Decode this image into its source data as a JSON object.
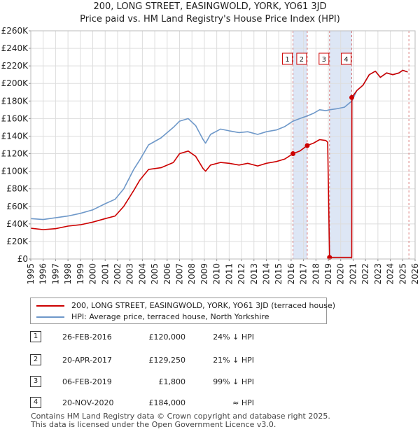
{
  "chart_data": {
    "type": "line",
    "title": "200, LONG STREET, EASINGWOLD, YORK, YO61 3JD",
    "subtitle": "Price paid vs. HM Land Registry's House Price Index (HPI)",
    "xlabel": "",
    "ylabel": "",
    "xlim": [
      1995,
      2026
    ],
    "ylim": [
      0,
      260000
    ],
    "x_ticks": [
      1995,
      1996,
      1997,
      1998,
      1999,
      2000,
      2001,
      2002,
      2003,
      2004,
      2005,
      2006,
      2007,
      2008,
      2009,
      2010,
      2011,
      2012,
      2013,
      2014,
      2015,
      2016,
      2017,
      2018,
      2019,
      2020,
      2021,
      2022,
      2023,
      2024,
      2025,
      2026
    ],
    "y_ticks": [
      {
        "value": 0,
        "label": "£0"
      },
      {
        "value": 20000,
        "label": "£20K"
      },
      {
        "value": 40000,
        "label": "£40K"
      },
      {
        "value": 60000,
        "label": "£60K"
      },
      {
        "value": 80000,
        "label": "£80K"
      },
      {
        "value": 100000,
        "label": "£100K"
      },
      {
        "value": 120000,
        "label": "£120K"
      },
      {
        "value": 140000,
        "label": "£140K"
      },
      {
        "value": 160000,
        "label": "£160K"
      },
      {
        "value": 180000,
        "label": "£180K"
      },
      {
        "value": 200000,
        "label": "£200K"
      },
      {
        "value": 220000,
        "label": "£220K"
      },
      {
        "value": 240000,
        "label": "£240K"
      },
      {
        "value": 260000,
        "label": "£260K"
      }
    ],
    "grid": true,
    "series": [
      {
        "name": "200, LONG STREET, EASINGWOLD, YORK, YO61 3JD (terraced house)",
        "color": "#cc0000",
        "points": [
          [
            1995.0,
            35000
          ],
          [
            1996.0,
            33500
          ],
          [
            1997.0,
            34500
          ],
          [
            1998.0,
            37500
          ],
          [
            1999.0,
            39000
          ],
          [
            2000.0,
            42000
          ],
          [
            2001.0,
            46000
          ],
          [
            2001.8,
            49000
          ],
          [
            2002.5,
            60000
          ],
          [
            2003.3,
            78000
          ],
          [
            2003.8,
            90000
          ],
          [
            2004.5,
            102000
          ],
          [
            2005.5,
            104000
          ],
          [
            2006.5,
            110000
          ],
          [
            2007.0,
            120000
          ],
          [
            2007.7,
            123000
          ],
          [
            2008.3,
            117000
          ],
          [
            2008.9,
            103000
          ],
          [
            2009.1,
            100000
          ],
          [
            2009.5,
            107000
          ],
          [
            2010.3,
            110000
          ],
          [
            2011.0,
            109000
          ],
          [
            2011.8,
            107000
          ],
          [
            2012.5,
            109000
          ],
          [
            2013.3,
            106000
          ],
          [
            2014.0,
            109000
          ],
          [
            2014.8,
            111000
          ],
          [
            2015.5,
            114000
          ],
          [
            2016.15,
            120000
          ],
          [
            2016.7,
            123000
          ],
          [
            2017.3,
            129250
          ],
          [
            2017.8,
            132000
          ],
          [
            2018.3,
            136000
          ],
          [
            2018.8,
            135000
          ],
          [
            2018.95,
            133000
          ],
          [
            2019.1,
            1800
          ],
          [
            2020.89,
            1800
          ],
          [
            2020.9,
            184000
          ],
          [
            2021.3,
            192000
          ],
          [
            2021.8,
            198000
          ],
          [
            2022.3,
            210000
          ],
          [
            2022.8,
            214000
          ],
          [
            2023.2,
            207000
          ],
          [
            2023.7,
            212000
          ],
          [
            2024.2,
            210000
          ],
          [
            2024.7,
            212000
          ],
          [
            2025.0,
            215000
          ],
          [
            2025.4,
            213000
          ]
        ]
      },
      {
        "name": "HPI: Average price, terraced house, North Yorkshire",
        "color": "#6e98c9",
        "points": [
          [
            1995.0,
            46000
          ],
          [
            1996.0,
            45000
          ],
          [
            1997.0,
            47000
          ],
          [
            1998.0,
            49000
          ],
          [
            1999.0,
            52000
          ],
          [
            2000.0,
            56000
          ],
          [
            2001.0,
            63000
          ],
          [
            2001.8,
            68000
          ],
          [
            2002.5,
            80000
          ],
          [
            2003.3,
            102000
          ],
          [
            2003.8,
            113000
          ],
          [
            2004.5,
            130000
          ],
          [
            2005.5,
            138000
          ],
          [
            2006.5,
            150000
          ],
          [
            2007.0,
            157000
          ],
          [
            2007.7,
            160000
          ],
          [
            2008.3,
            152000
          ],
          [
            2008.9,
            136000
          ],
          [
            2009.1,
            132000
          ],
          [
            2009.5,
            142000
          ],
          [
            2010.3,
            148000
          ],
          [
            2011.0,
            146000
          ],
          [
            2011.8,
            144000
          ],
          [
            2012.5,
            145000
          ],
          [
            2013.3,
            142000
          ],
          [
            2014.0,
            145000
          ],
          [
            2014.8,
            147000
          ],
          [
            2015.5,
            151000
          ],
          [
            2016.15,
            157000
          ],
          [
            2016.7,
            160000
          ],
          [
            2017.3,
            163000
          ],
          [
            2017.8,
            166000
          ],
          [
            2018.3,
            170000
          ],
          [
            2018.8,
            169000
          ],
          [
            2019.1,
            170000
          ],
          [
            2019.6,
            171000
          ],
          [
            2020.3,
            173000
          ],
          [
            2020.9,
            180000
          ],
          [
            2021.3,
            192000
          ],
          [
            2021.8,
            198000
          ],
          [
            2022.3,
            210000
          ],
          [
            2022.8,
            214000
          ],
          [
            2023.2,
            207000
          ],
          [
            2023.7,
            212000
          ],
          [
            2024.2,
            210000
          ],
          [
            2024.7,
            212000
          ],
          [
            2025.0,
            215000
          ],
          [
            2025.4,
            213000
          ]
        ]
      }
    ],
    "sales": [
      {
        "id": "1",
        "x": 2016.15,
        "price": 120000
      },
      {
        "id": "2",
        "x": 2017.3,
        "price": 129250
      },
      {
        "id": "3",
        "x": 2019.1,
        "price": 1800
      },
      {
        "id": "4",
        "x": 2020.89,
        "price": 184000
      }
    ],
    "shaded_ranges": [
      [
        2016.15,
        2017.3
      ],
      [
        2019.1,
        2020.89
      ]
    ],
    "vline_end": 2025.5
  },
  "legend": {
    "property_label": "200, LONG STREET, EASINGWOLD, YORK, YO61 3JD (terraced house)",
    "hpi_label": "HPI: Average price, terraced house, North Yorkshire"
  },
  "transactions": [
    {
      "num": "1",
      "date": "26-FEB-2016",
      "price": "£120,000",
      "relation": "24% ↓ HPI"
    },
    {
      "num": "2",
      "date": "20-APR-2017",
      "price": "£129,250",
      "relation": "21% ↓ HPI"
    },
    {
      "num": "3",
      "date": "06-FEB-2019",
      "price": "£1,800",
      "relation": "99% ↓ HPI"
    },
    {
      "num": "4",
      "date": "20-NOV-2020",
      "price": "£184,000",
      "relation": "≈ HPI"
    }
  ],
  "footer": {
    "line1": "Contains HM Land Registry data © Crown copyright and database right 2025.",
    "line2": "This data is licensed under the Open Government Licence v3.0."
  },
  "colors": {
    "property": "#cc0000",
    "hpi": "#6e98c9",
    "shade": "#dde6f5",
    "marker_border": "#cc0000",
    "vline": "#cc4444"
  }
}
